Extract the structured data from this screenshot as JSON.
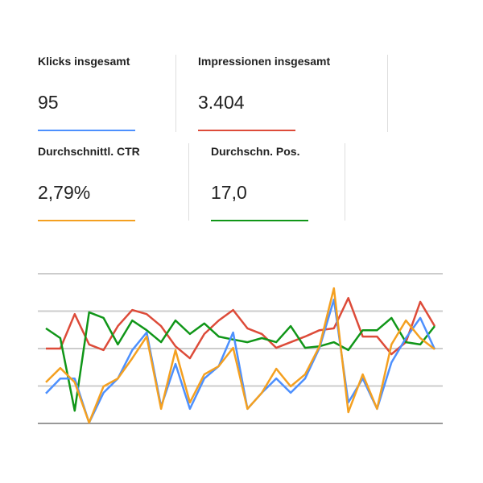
{
  "metrics": [
    {
      "label": "Klicks insgesamt",
      "value": "95",
      "color": "#4d90fe"
    },
    {
      "label": "Impressionen insgesamt",
      "value": "3.404",
      "color": "#dd4b39"
    },
    {
      "label": "Durchschnittl. CTR",
      "value": "2,79%",
      "color": "#f4a020"
    },
    {
      "label": "Durchschn. Pos.",
      "value": "17,0",
      "color": "#109618"
    }
  ],
  "chart_data": {
    "type": "line",
    "categories": [
      null,
      null,
      null,
      null,
      null,
      null,
      null,
      null,
      null,
      null,
      null,
      null,
      null,
      null,
      null,
      null,
      null,
      null,
      null,
      null,
      null,
      null,
      null,
      null,
      null,
      null,
      null,
      null
    ],
    "ylim": [
      0,
      4
    ],
    "yticks": [
      0,
      1,
      2,
      3,
      4
    ],
    "grid": true,
    "series": [
      {
        "color": "#dd4b39",
        "values": [
          2.0,
          2.0,
          2.92,
          2.11,
          1.96,
          2.6,
          3.03,
          2.92,
          2.6,
          2.06,
          1.74,
          2.39,
          2.75,
          3.03,
          2.54,
          2.39,
          2.02,
          2.17,
          2.32,
          2.49,
          2.54,
          3.35,
          2.32,
          2.32,
          1.85,
          2.17,
          3.25,
          2.6
        ]
      },
      {
        "color": "#109618",
        "values": [
          2.54,
          2.28,
          0.34,
          2.97,
          2.82,
          2.11,
          2.75,
          2.49,
          2.17,
          2.75,
          2.39,
          2.67,
          2.32,
          2.24,
          2.17,
          2.28,
          2.17,
          2.6,
          2.02,
          2.06,
          2.17,
          1.96,
          2.49,
          2.49,
          2.82,
          2.17,
          2.11,
          2.6
        ]
      },
      {
        "color": "#4d90fe",
        "values": [
          0.8,
          1.2,
          1.2,
          0.02,
          0.82,
          1.2,
          1.96,
          2.43,
          0.45,
          1.59,
          0.39,
          1.2,
          1.53,
          2.43,
          0.39,
          0.82,
          1.2,
          0.82,
          1.2,
          2.02,
          3.31,
          0.56,
          1.2,
          0.39,
          1.63,
          2.28,
          2.82,
          1.98
        ]
      },
      {
        "color": "#f4a020",
        "values": [
          1.1,
          1.48,
          1.1,
          0.02,
          0.99,
          1.2,
          1.74,
          2.32,
          0.39,
          1.96,
          0.56,
          1.31,
          1.53,
          2.02,
          0.39,
          0.82,
          1.46,
          0.99,
          1.31,
          2.06,
          3.61,
          0.3,
          1.31,
          0.39,
          2.11,
          2.75,
          2.28,
          1.98
        ]
      }
    ]
  }
}
